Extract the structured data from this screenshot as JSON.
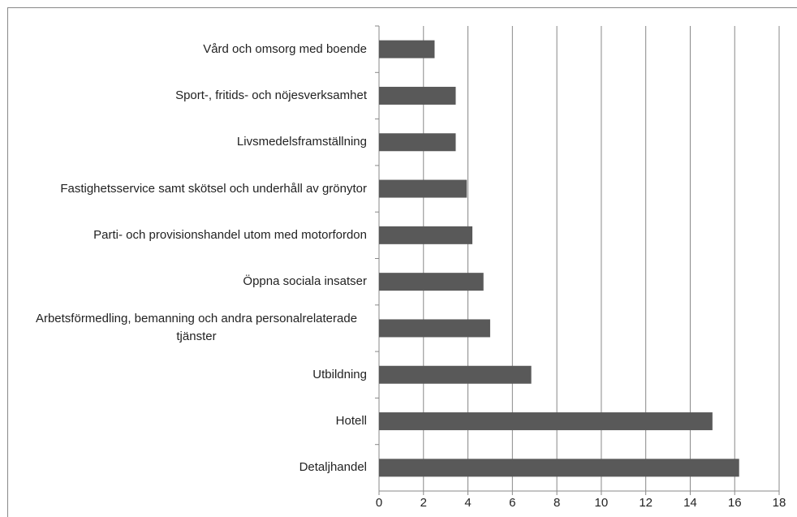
{
  "chart_data": {
    "type": "bar",
    "orientation": "horizontal",
    "categories": [
      "Vård och omsorg med boende",
      "Sport-, fritids- och nöjesverksamhet",
      "Livsmedelsframställning",
      "Fastighetsservice samt skötsel och underhåll av grönytor",
      "Parti- och provisionshandel utom med motorfordon",
      "Öppna sociala insatser",
      "Arbetsförmedling, bemanning och andra personalrelaterade tjänster",
      "Utbildning",
      "Hotell",
      "Detaljhandel"
    ],
    "values": [
      2.5,
      3.45,
      3.45,
      3.95,
      4.2,
      4.7,
      5.0,
      6.85,
      15.0,
      16.2
    ],
    "color": "#595959",
    "xlim": [
      0,
      18
    ],
    "xticks": [
      0,
      2,
      4,
      6,
      8,
      10,
      12,
      14,
      16,
      18
    ],
    "grid": true
  }
}
